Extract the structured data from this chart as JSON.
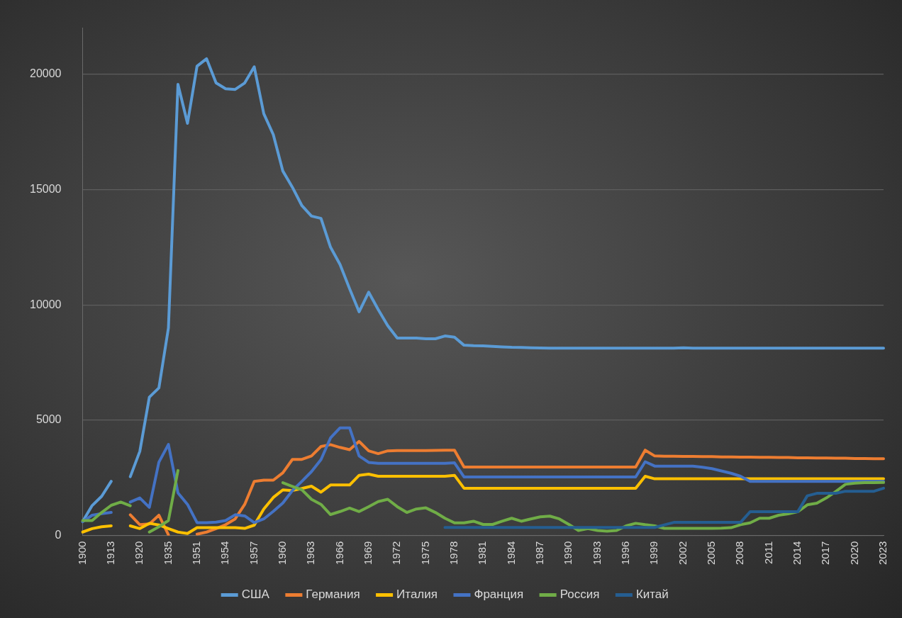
{
  "chart_data": {
    "type": "line",
    "categories": [
      "1900",
      null,
      null,
      "1913",
      null,
      null,
      "1920",
      null,
      null,
      "1935",
      null,
      null,
      "1951",
      null,
      null,
      "1954",
      null,
      null,
      "1957",
      null,
      null,
      "1960",
      null,
      null,
      "1963",
      null,
      null,
      "1966",
      null,
      null,
      "1969",
      null,
      null,
      "1972",
      null,
      null,
      "1975",
      null,
      null,
      "1978",
      null,
      null,
      "1981",
      null,
      null,
      "1984",
      null,
      null,
      "1987",
      null,
      null,
      "1990",
      null,
      null,
      "1993",
      null,
      null,
      "1996",
      null,
      null,
      "1999",
      null,
      null,
      "2002",
      null,
      null,
      "2005",
      null,
      null,
      "2008",
      null,
      null,
      "2011",
      null,
      null,
      "2014",
      null,
      null,
      "2017",
      null,
      null,
      "2020",
      null,
      null,
      "2023"
    ],
    "series": [
      {
        "name": "США",
        "color": "#5b9bd5",
        "values": [
          600,
          1300,
          1700,
          2350,
          null,
          2550,
          3650,
          6000,
          6400,
          9000,
          19560,
          17870,
          20350,
          20670,
          19620,
          19370,
          19340,
          19620,
          20320,
          18290,
          17380,
          15800,
          15100,
          14300,
          13850,
          13750,
          12500,
          11750,
          10700,
          9700,
          10550,
          9800,
          9100,
          8560,
          8560,
          8560,
          8530,
          8530,
          8650,
          8600,
          8250,
          8230,
          8220,
          8200,
          8180,
          8160,
          8150,
          8140,
          8130,
          8120,
          8120,
          8120,
          8120,
          8120,
          8120,
          8120,
          8120,
          8120,
          8120,
          8120,
          8120,
          8120,
          8120,
          8140,
          8120,
          8120,
          8120,
          8120,
          8120,
          8120,
          8120,
          8120,
          8120,
          8120,
          8120,
          8120,
          8120,
          8120,
          8120,
          8120,
          8120,
          8120,
          8120,
          8120,
          8120
        ]
      },
      {
        "name": "Германия",
        "color": "#ed7d31",
        "values": [
          null,
          null,
          null,
          null,
          null,
          900,
          470,
          500,
          880,
          30,
          null,
          null,
          60,
          150,
          300,
          470,
          720,
          1350,
          2350,
          2400,
          2400,
          2720,
          3300,
          3300,
          3450,
          3860,
          3940,
          3820,
          3720,
          4080,
          3670,
          3550,
          3670,
          3680,
          3680,
          3680,
          3680,
          3690,
          3700,
          3700,
          2970,
          2970,
          2970,
          2970,
          2970,
          2970,
          2970,
          2970,
          2970,
          2970,
          2970,
          2970,
          2970,
          2970,
          2970,
          2970,
          2970,
          2970,
          2970,
          3700,
          3450,
          3440,
          3440,
          3430,
          3430,
          3420,
          3420,
          3410,
          3410,
          3400,
          3400,
          3390,
          3390,
          3380,
          3380,
          3370,
          3370,
          3360,
          3360,
          3350,
          3350,
          3340,
          3340,
          3330,
          3330
        ]
      },
      {
        "name": "Италия",
        "color": "#ffc000",
        "values": [
          150,
          300,
          380,
          420,
          null,
          420,
          300,
          530,
          460,
          300,
          150,
          90,
          340,
          340,
          340,
          340,
          340,
          310,
          450,
          1150,
          1650,
          1980,
          1950,
          2040,
          2140,
          1880,
          2190,
          2190,
          2190,
          2610,
          2660,
          2570,
          2570,
          2570,
          2570,
          2570,
          2570,
          2570,
          2570,
          2610,
          2050,
          2050,
          2050,
          2050,
          2050,
          2050,
          2050,
          2050,
          2050,
          2050,
          2050,
          2050,
          2050,
          2050,
          2050,
          2050,
          2050,
          2050,
          2050,
          2570,
          2460,
          2460,
          2460,
          2460,
          2460,
          2460,
          2460,
          2460,
          2460,
          2460,
          2460,
          2460,
          2460,
          2460,
          2460,
          2460,
          2460,
          2460,
          2460,
          2460,
          2460,
          2460,
          2460,
          2460,
          2460
        ]
      },
      {
        "name": "Франция",
        "color": "#4472c4",
        "values": [
          600,
          880,
          950,
          1000,
          null,
          1450,
          1630,
          1220,
          3180,
          3950,
          1850,
          1350,
          560,
          560,
          580,
          650,
          900,
          850,
          560,
          720,
          1050,
          1410,
          1950,
          2350,
          2770,
          3290,
          4230,
          4670,
          4670,
          3450,
          3170,
          3130,
          3130,
          3130,
          3130,
          3130,
          3130,
          3130,
          3130,
          3150,
          2540,
          2540,
          2540,
          2540,
          2540,
          2540,
          2540,
          2540,
          2540,
          2540,
          2540,
          2540,
          2540,
          2540,
          2540,
          2540,
          2540,
          2540,
          2540,
          3200,
          3010,
          3010,
          3010,
          3010,
          3010,
          2960,
          2900,
          2800,
          2700,
          2570,
          2350,
          2350,
          2350,
          2350,
          2350,
          2350,
          2350,
          2350,
          2350,
          2350,
          2350,
          2350,
          2350,
          2350,
          2350
        ]
      },
      {
        "name": "Россия",
        "color": "#70ad47",
        "values": [
          650,
          650,
          1000,
          1310,
          1450,
          1290,
          null,
          150,
          380,
          650,
          2820,
          null,
          null,
          null,
          null,
          null,
          null,
          null,
          null,
          null,
          null,
          2290,
          2130,
          1980,
          1570,
          1350,
          910,
          1040,
          1190,
          1040,
          1250,
          1470,
          1570,
          1250,
          1000,
          1150,
          1200,
          1000,
          750,
          550,
          550,
          620,
          480,
          480,
          620,
          750,
          620,
          720,
          810,
          840,
          720,
          480,
          220,
          300,
          220,
          190,
          220,
          420,
          530,
          470,
          420,
          310,
          310,
          310,
          310,
          310,
          310,
          320,
          340,
          470,
          550,
          750,
          750,
          880,
          940,
          1030,
          1330,
          1400,
          1630,
          1910,
          2220,
          2270,
          2290,
          2290,
          2300
        ]
      },
      {
        "name": "Китай",
        "color": "#255e91",
        "values": [
          null,
          null,
          null,
          null,
          null,
          null,
          null,
          null,
          null,
          null,
          null,
          null,
          null,
          null,
          null,
          null,
          null,
          null,
          null,
          null,
          null,
          null,
          null,
          null,
          null,
          null,
          null,
          null,
          null,
          null,
          null,
          null,
          null,
          null,
          null,
          null,
          null,
          null,
          350,
          350,
          350,
          350,
          350,
          350,
          350,
          350,
          350,
          350,
          350,
          350,
          350,
          350,
          350,
          350,
          350,
          350,
          350,
          350,
          350,
          350,
          350,
          460,
          570,
          570,
          570,
          570,
          570,
          570,
          570,
          570,
          1030,
          1030,
          1030,
          1030,
          1030,
          1030,
          1720,
          1830,
          1830,
          1830,
          1920,
          1920,
          1920,
          1920,
          2050
        ]
      }
    ],
    "ylim": [
      0,
      22000
    ],
    "yticks": [
      0,
      5000,
      10000,
      15000,
      20000
    ],
    "grid": "y",
    "legend": "bottom",
    "marker": "none",
    "line_style": "solid"
  }
}
